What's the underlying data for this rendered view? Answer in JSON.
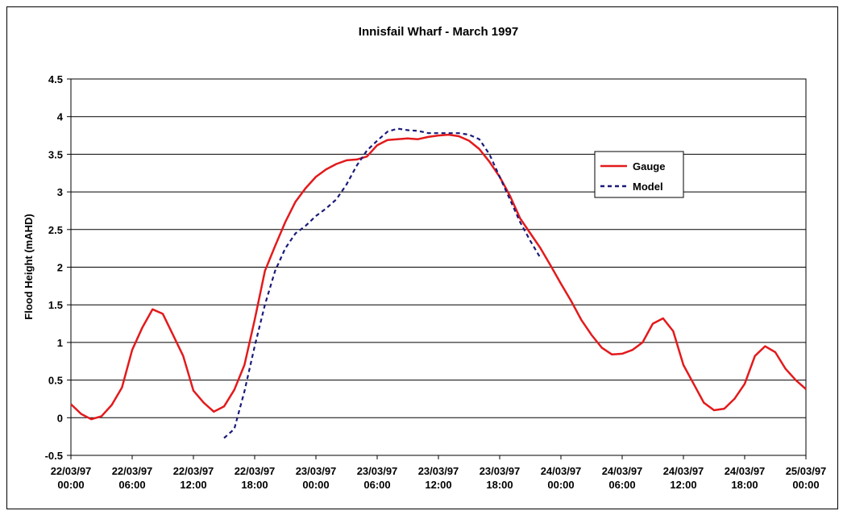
{
  "chart_data": {
    "type": "line",
    "title": "Innisfail Wharf - March 1997",
    "y_label": "Flood Height (mAHD)",
    "x": [
      "22/03/97 00:00",
      "22/03/97 01:00",
      "22/03/97 02:00",
      "22/03/97 03:00",
      "22/03/97 04:00",
      "22/03/97 05:00",
      "22/03/97 06:00",
      "22/03/97 07:00",
      "22/03/97 08:00",
      "22/03/97 09:00",
      "22/03/97 10:00",
      "22/03/97 11:00",
      "22/03/97 12:00",
      "22/03/97 13:00",
      "22/03/97 14:00",
      "22/03/97 15:00",
      "22/03/97 16:00",
      "22/03/97 17:00",
      "22/03/97 18:00",
      "22/03/97 19:00",
      "22/03/97 20:00",
      "22/03/97 21:00",
      "22/03/97 22:00",
      "22/03/97 23:00",
      "23/03/97 00:00",
      "23/03/97 01:00",
      "23/03/97 02:00",
      "23/03/97 03:00",
      "23/03/97 04:00",
      "23/03/97 05:00",
      "23/03/97 06:00",
      "23/03/97 07:00",
      "23/03/97 08:00",
      "23/03/97 09:00",
      "23/03/97 10:00",
      "23/03/97 11:00",
      "23/03/97 12:00",
      "23/03/97 13:00",
      "23/03/97 14:00",
      "23/03/97 15:00",
      "23/03/97 16:00",
      "23/03/97 17:00",
      "23/03/97 18:00",
      "23/03/97 19:00",
      "23/03/97 20:00",
      "23/03/97 21:00",
      "23/03/97 22:00",
      "23/03/97 23:00",
      "24/03/97 00:00",
      "24/03/97 01:00",
      "24/03/97 02:00",
      "24/03/97 03:00",
      "24/03/97 04:00",
      "24/03/97 05:00",
      "24/03/97 06:00",
      "24/03/97 07:00",
      "24/03/97 08:00",
      "24/03/97 09:00",
      "24/03/97 10:00",
      "24/03/97 11:00",
      "24/03/97 12:00",
      "24/03/97 13:00",
      "24/03/97 14:00",
      "24/03/97 15:00",
      "24/03/97 16:00",
      "24/03/97 17:00",
      "24/03/97 18:00",
      "24/03/97 19:00",
      "24/03/97 20:00",
      "24/03/97 21:00",
      "24/03/97 22:00",
      "24/03/97 23:00",
      "25/03/97 00:00"
    ],
    "series": [
      {
        "name": "Gauge",
        "color": "#e31a1c",
        "dashed": false,
        "values": [
          0.18,
          0.05,
          -0.02,
          0.02,
          0.17,
          0.4,
          0.9,
          1.2,
          1.44,
          1.38,
          1.1,
          0.82,
          0.36,
          0.2,
          0.08,
          0.15,
          0.37,
          0.7,
          1.3,
          1.95,
          2.28,
          2.6,
          2.87,
          3.05,
          3.2,
          3.3,
          3.37,
          3.42,
          3.43,
          3.47,
          3.62,
          3.69,
          3.7,
          3.71,
          3.7,
          3.73,
          3.75,
          3.76,
          3.74,
          3.68,
          3.57,
          3.4,
          3.2,
          2.95,
          2.65,
          2.45,
          2.25,
          2.02,
          1.78,
          1.55,
          1.3,
          1.1,
          0.93,
          0.84,
          0.85,
          0.9,
          1.0,
          1.25,
          1.32,
          1.15,
          0.7,
          0.45,
          0.2,
          0.1,
          0.12,
          0.25,
          0.45,
          0.82,
          0.95,
          0.87,
          0.65,
          0.5,
          0.38
        ]
      },
      {
        "name": "Model",
        "color": "#1a1a7a",
        "dashed": true,
        "values": [
          null,
          null,
          null,
          null,
          null,
          null,
          null,
          null,
          null,
          null,
          null,
          null,
          null,
          null,
          null,
          -0.27,
          -0.15,
          0.35,
          0.95,
          1.5,
          1.95,
          2.25,
          2.45,
          2.55,
          2.68,
          2.78,
          2.9,
          3.1,
          3.35,
          3.55,
          3.68,
          3.8,
          3.84,
          3.82,
          3.81,
          3.78,
          3.78,
          3.78,
          3.78,
          3.76,
          3.7,
          3.5,
          3.2,
          2.9,
          2.6,
          2.35,
          2.12,
          null,
          null,
          null,
          null,
          null,
          null,
          null,
          null,
          null,
          null,
          null,
          null,
          null,
          null,
          null,
          null,
          null,
          null,
          null,
          null,
          null,
          null,
          null,
          null,
          null,
          null
        ]
      }
    ],
    "xlim": [
      "22/03/97 00:00",
      "25/03/97 00:00"
    ],
    "xticks": [
      "22/03/97 00:00",
      "22/03/97 06:00",
      "22/03/97 12:00",
      "22/03/97 18:00",
      "23/03/97 00:00",
      "23/03/97 06:00",
      "23/03/97 12:00",
      "23/03/97 18:00",
      "24/03/97 00:00",
      "24/03/97 06:00",
      "24/03/97 12:00",
      "24/03/97 18:00",
      "25/03/97 00:00"
    ],
    "ylim": [
      -0.5,
      4.5
    ],
    "yticks": [
      -0.5,
      0,
      0.5,
      1,
      1.5,
      2,
      2.5,
      3,
      3.5,
      4,
      4.5
    ],
    "grid": true
  }
}
